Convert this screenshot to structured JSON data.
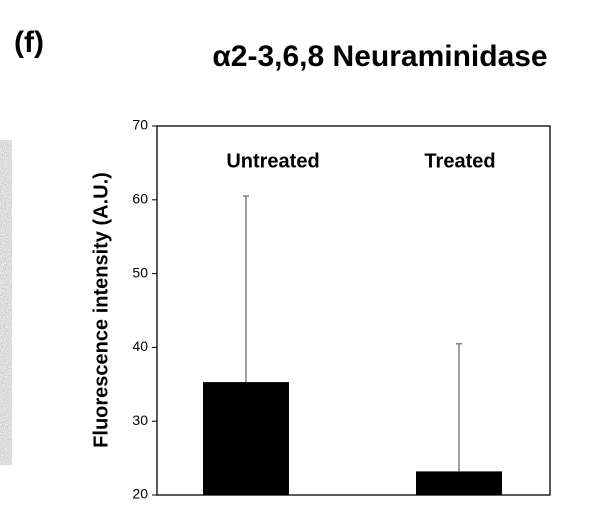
{
  "chart_data": {
    "type": "bar",
    "panel_label": "(f)",
    "title": "α2-3,6,8 Neuraminidase",
    "y_label": "Fluorescence intensity (A.U.)",
    "categories": [
      "Untreated",
      "Treated"
    ],
    "values": [
      35.3,
      23.2
    ],
    "errors": [
      25.2,
      17.3
    ],
    "color": "#000000",
    "error_color": "#808080",
    "ylim": [
      20,
      70
    ],
    "yticks": [
      20,
      30,
      40,
      50,
      60,
      70
    ]
  }
}
